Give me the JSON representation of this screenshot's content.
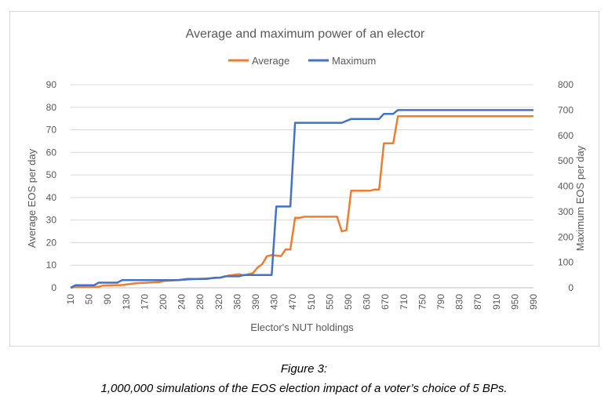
{
  "caption": {
    "figure_label": "Figure 3:",
    "description": "1,000,000 simulations of the EOS election impact of a voter’s choice of 5 BPs."
  },
  "colors": {
    "average": "#ED7D31",
    "maximum": "#4472C4",
    "text": "#595959",
    "grid": "#d9d9d9"
  },
  "chart_data": {
    "type": "line",
    "title": "Average and maximum power of an elector",
    "xlabel": "Elector's NUT holdings",
    "ylabel_left": "Average EOS per day",
    "ylabel_right": "Maximum EOS per day",
    "legend_position": "top",
    "grid": "horizontal",
    "xlim": [
      10,
      1000
    ],
    "ylim_left": [
      0,
      90
    ],
    "ylim_right": [
      0,
      800
    ],
    "y_ticks_left": [
      0,
      10,
      20,
      30,
      40,
      50,
      60,
      70,
      80,
      90
    ],
    "y_ticks_right": [
      0,
      100,
      200,
      300,
      400,
      500,
      600,
      700,
      800
    ],
    "x_tick_labels": [
      "10",
      "50",
      "90",
      "130",
      "170",
      "200",
      "240",
      "280",
      "320",
      "360",
      "390",
      "430",
      "470",
      "510",
      "550",
      "590",
      "630",
      "670",
      "710",
      "750",
      "790",
      "830",
      "870",
      "910",
      "950",
      "990"
    ],
    "series": [
      {
        "name": "Average",
        "axis": "left",
        "points": [
          [
            10,
            0
          ],
          [
            20,
            0.3
          ],
          [
            70,
            0.5
          ],
          [
            80,
            1
          ],
          [
            120,
            1.2
          ],
          [
            130,
            1.5
          ],
          [
            150,
            2
          ],
          [
            200,
            2.5
          ],
          [
            210,
            3
          ],
          [
            250,
            3.5
          ],
          [
            270,
            3.8
          ],
          [
            290,
            4
          ],
          [
            330,
            4.5
          ],
          [
            350,
            5.5
          ],
          [
            370,
            6
          ],
          [
            380,
            5.5
          ],
          [
            400,
            6.5
          ],
          [
            410,
            9
          ],
          [
            420,
            10.5
          ],
          [
            430,
            14
          ],
          [
            440,
            14.5
          ],
          [
            460,
            14
          ],
          [
            470,
            17
          ],
          [
            480,
            17
          ],
          [
            490,
            31
          ],
          [
            500,
            31
          ],
          [
            510,
            31.5
          ],
          [
            580,
            31.5
          ],
          [
            590,
            25
          ],
          [
            600,
            25.5
          ],
          [
            610,
            43
          ],
          [
            650,
            43
          ],
          [
            660,
            43.5
          ],
          [
            670,
            43.5
          ],
          [
            680,
            64
          ],
          [
            700,
            64
          ],
          [
            710,
            76
          ],
          [
            1000,
            76
          ]
        ]
      },
      {
        "name": "Maximum",
        "axis": "right",
        "points": [
          [
            10,
            0
          ],
          [
            20,
            10
          ],
          [
            60,
            10
          ],
          [
            70,
            20
          ],
          [
            110,
            20
          ],
          [
            120,
            30
          ],
          [
            240,
            30
          ],
          [
            260,
            35
          ],
          [
            300,
            35
          ],
          [
            320,
            40
          ],
          [
            330,
            40
          ],
          [
            340,
            45
          ],
          [
            370,
            45
          ],
          [
            380,
            50
          ],
          [
            440,
            50
          ],
          [
            450,
            320
          ],
          [
            480,
            320
          ],
          [
            490,
            650
          ],
          [
            590,
            650
          ],
          [
            610,
            665
          ],
          [
            670,
            665
          ],
          [
            680,
            685
          ],
          [
            700,
            685
          ],
          [
            710,
            700
          ],
          [
            1000,
            700
          ]
        ]
      }
    ]
  }
}
